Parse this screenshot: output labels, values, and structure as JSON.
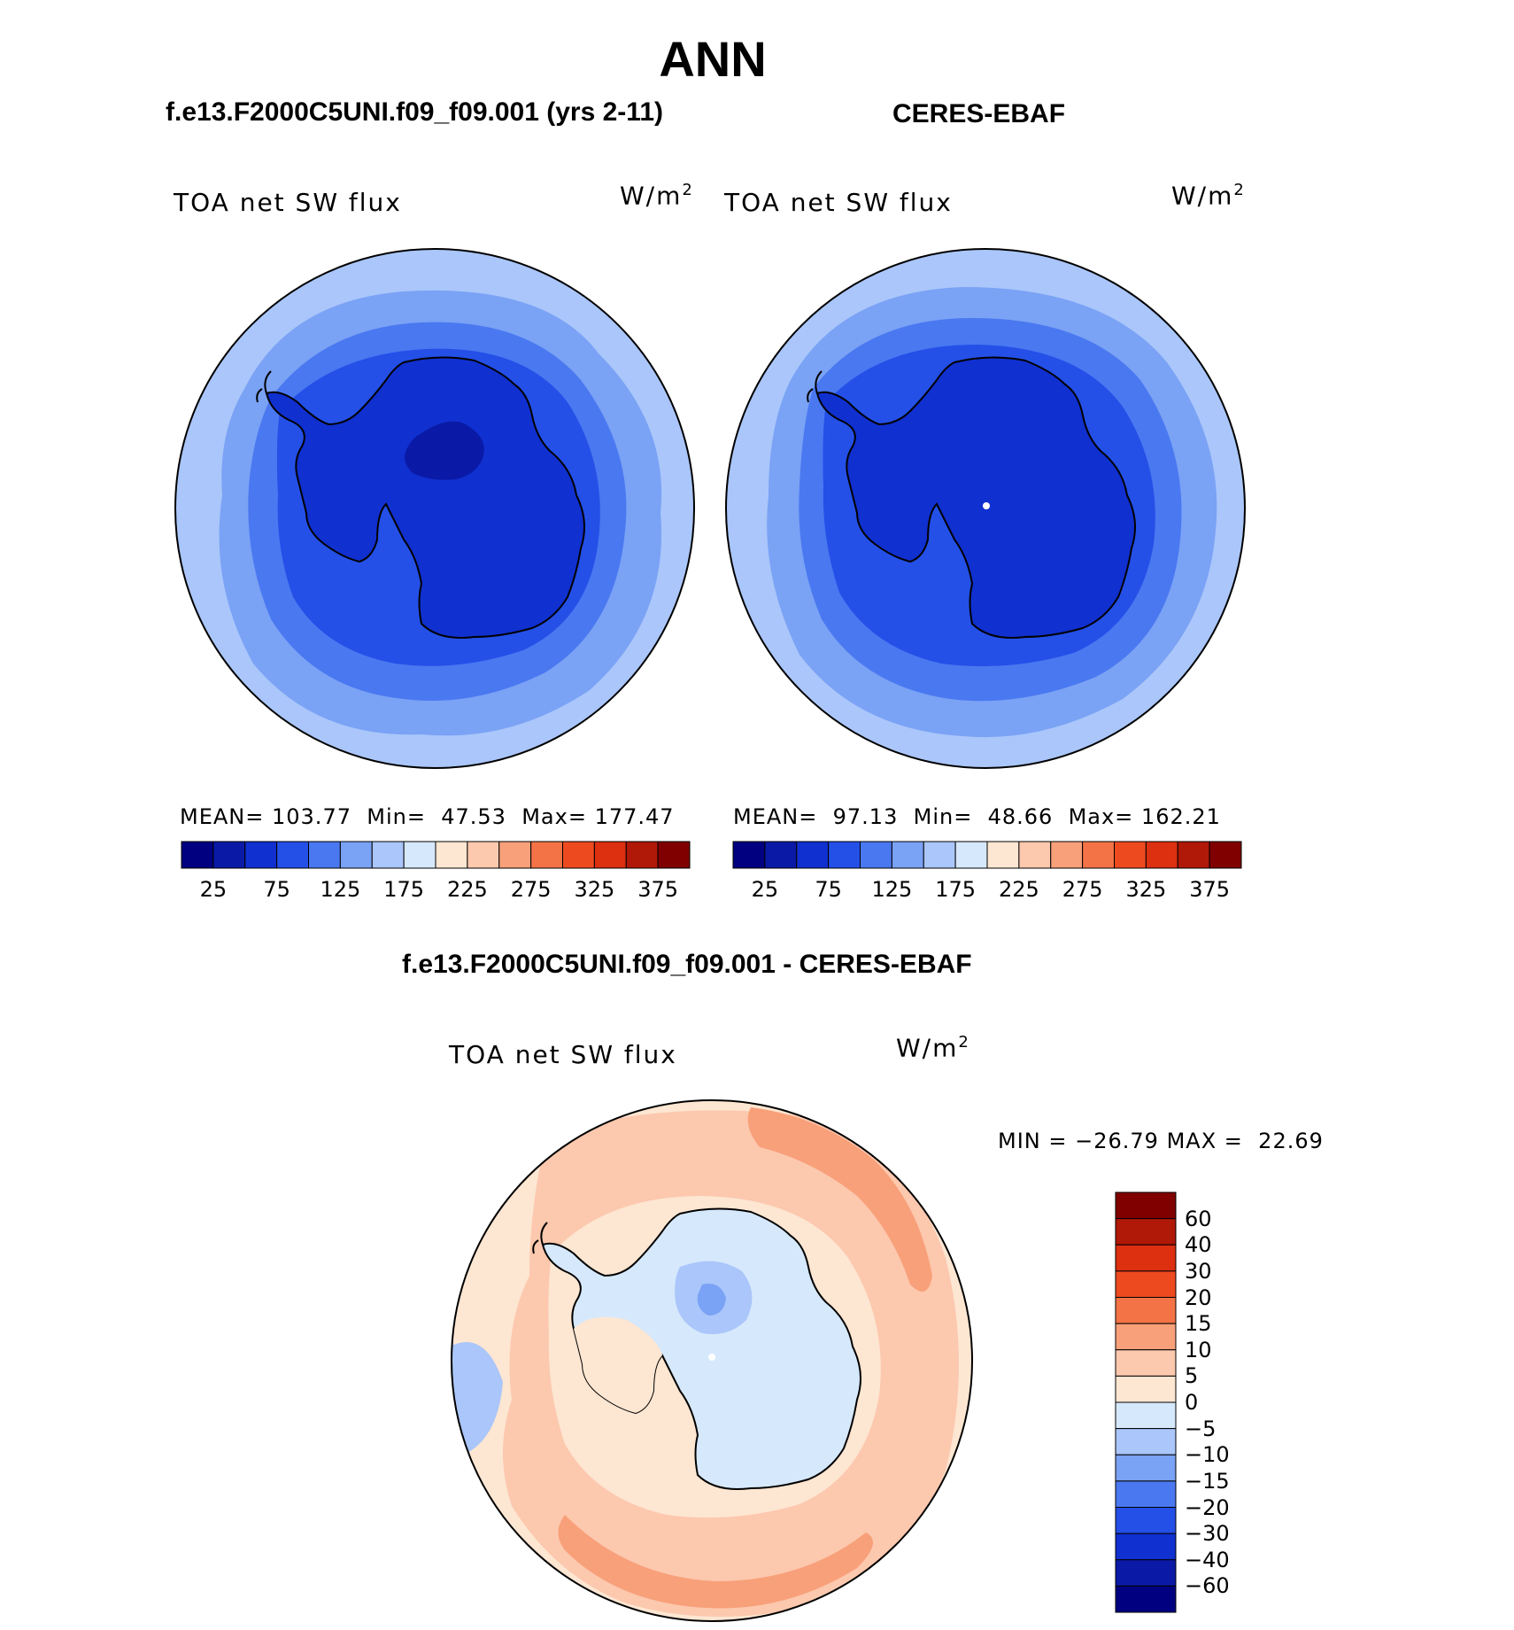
{
  "figure": {
    "title": "ANN"
  },
  "panels": [
    {
      "id": "model",
      "heading": "f.e13.F2000C5UNI.f09_f09.001 (yrs 2-11)",
      "variable": "TOA net SW flux",
      "units_base": "W/m",
      "units_exp": "2",
      "stats": {
        "mean_label": "MEAN=",
        "mean": "103.77",
        "min_label": "Min=",
        "min": "47.53",
        "max_label": "Max=",
        "max": "177.47"
      }
    },
    {
      "id": "obs",
      "heading": "CERES-EBAF",
      "variable": "TOA net SW flux",
      "units_base": "W/m",
      "units_exp": "2",
      "stats": {
        "mean_label": "MEAN=",
        "mean": "97.13",
        "min_label": "Min=",
        "min": "48.66",
        "max_label": "Max=",
        "max": "162.21"
      }
    },
    {
      "id": "diff",
      "heading": "f.e13.F2000C5UNI.f09_f09.001 - CERES-EBAF",
      "variable": "TOA net SW flux",
      "units_base": "W/m",
      "units_exp": "2",
      "stats": {
        "min_label": "MIN =",
        "min": "−26.79",
        "max_label": "MAX =",
        "max": "22.69"
      }
    }
  ],
  "colorbars": {
    "absolute": {
      "colors": [
        "#000080",
        "#0a1aa6",
        "#1030d0",
        "#2450e8",
        "#4a78f0",
        "#7aa2f5",
        "#aac6fa",
        "#d6e8fc",
        "#fde6d2",
        "#fcc8ae",
        "#f8a07a",
        "#f47346",
        "#ee4a20",
        "#dc3010",
        "#b01808",
        "#800000"
      ],
      "tick_labels": [
        "25",
        "75",
        "125",
        "175",
        "225",
        "275",
        "325",
        "375"
      ]
    },
    "difference": {
      "colors": [
        "#800000",
        "#b01808",
        "#dc3010",
        "#ee4a20",
        "#f47346",
        "#f8a07a",
        "#fcc8ae",
        "#fde6d2",
        "#d6e8fc",
        "#aac6fa",
        "#7aa2f5",
        "#4a78f0",
        "#2450e8",
        "#1030d0",
        "#0a1aa6",
        "#000080"
      ],
      "tick_labels": [
        "60",
        "40",
        "30",
        "20",
        "15",
        "10",
        "5",
        "0",
        "−5",
        "−10",
        "−15",
        "−20",
        "−30",
        "−40",
        "−60"
      ]
    }
  },
  "map_colors": {
    "ocean_outer": "#aac6fa",
    "ocean_mid": "#7aa2f5",
    "ocean_inner": "#4a78f0",
    "ocean_near": "#2450e8",
    "land": "#1030d0",
    "land_core": "#0a1aa6",
    "diff_outer": "#fde6d2",
    "diff_mid": "#fcc8ae",
    "diff_high": "#f8a07a",
    "diff_neg": "#d6e8fc",
    "diff_neg2": "#aac6fa",
    "diff_neg3": "#7aa2f5",
    "coast": "#000000"
  }
}
